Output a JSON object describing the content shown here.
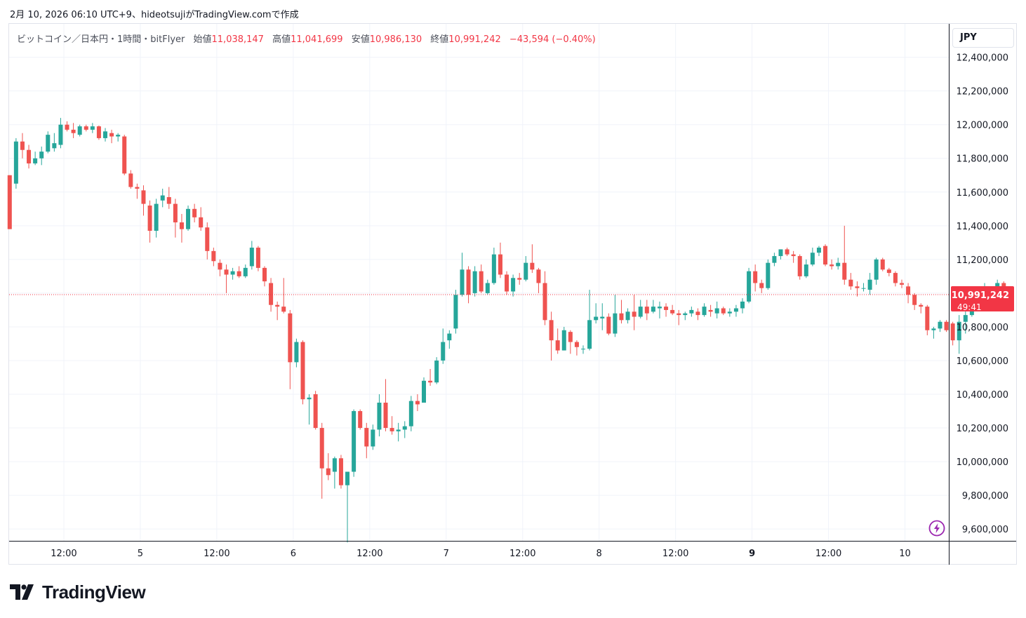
{
  "snapshot_caption": "2月 10, 2026 06:10 UTC+9、hideotsujiがTradingView.comで作成",
  "legend": {
    "symbol": "ビットコイン／日本円・1時間・bitFlyer",
    "open_label": "始値",
    "open_value": "11,038,147",
    "high_label": "高値",
    "high_value": "11,041,699",
    "low_label": "安値",
    "low_value": "10,986,130",
    "close_label": "終値",
    "close_value": "10,991,242",
    "change": "−43,594 (−0.40%)"
  },
  "currency": "JPY",
  "price_badge": {
    "price": "10,991,242",
    "countdown": "49:41"
  },
  "logo_text": "TradingView",
  "icons": {
    "alert": "lightning-icon",
    "brand": "tradingview-logo-icon"
  },
  "colors": {
    "up": "#26a69a",
    "down": "#ef5350",
    "last_price": "#f23645",
    "grid": "#f0f3fa",
    "accent": "#9c27b0"
  },
  "chart_data": {
    "type": "candlestick",
    "interval": "1h",
    "last_price": 10991242,
    "y_ticks": [
      9600000,
      9800000,
      10000000,
      10200000,
      10400000,
      10600000,
      10800000,
      11000000,
      11200000,
      11400000,
      11600000,
      11800000,
      12000000,
      12200000,
      12400000
    ],
    "y_tick_labels": [
      "9,600,000",
      "9,800,000",
      "10,000,000",
      "10,200,000",
      "10,400,000",
      "10,600,000",
      "10,800,000",
      "",
      "11,200,000",
      "11,400,000",
      "11,600,000",
      "11,800,000",
      "12,000,000",
      "12,200,000",
      "12,400,000"
    ],
    "x_ticks": [
      {
        "label": "12:00",
        "index": 8.5,
        "bold": false
      },
      {
        "label": "5",
        "index": 20.5,
        "bold": false
      },
      {
        "label": "12:00",
        "index": 32.5,
        "bold": false
      },
      {
        "label": "6",
        "index": 44.5,
        "bold": false
      },
      {
        "label": "12:00",
        "index": 56.5,
        "bold": false
      },
      {
        "label": "7",
        "index": 68.5,
        "bold": false
      },
      {
        "label": "12:00",
        "index": 80.5,
        "bold": false
      },
      {
        "label": "8",
        "index": 92.5,
        "bold": false
      },
      {
        "label": "12:00",
        "index": 104.5,
        "bold": false
      },
      {
        "label": "9",
        "index": 116.5,
        "bold": true
      },
      {
        "label": "12:00",
        "index": 128.5,
        "bold": false
      },
      {
        "label": "10",
        "index": 140.5,
        "bold": false
      }
    ],
    "candles": [
      [
        11700000,
        11700000,
        11380000,
        11380000
      ],
      [
        11650000,
        11920000,
        11620000,
        11900000
      ],
      [
        11900000,
        11950000,
        11800000,
        11850000
      ],
      [
        11850000,
        11880000,
        11740000,
        11770000
      ],
      [
        11770000,
        11840000,
        11760000,
        11800000
      ],
      [
        11800000,
        11870000,
        11760000,
        11840000
      ],
      [
        11840000,
        11960000,
        11830000,
        11940000
      ],
      [
        11860000,
        11950000,
        11840000,
        11890000
      ],
      [
        11880000,
        12040000,
        11860000,
        12000000
      ],
      [
        12000000,
        12020000,
        11960000,
        11970000
      ],
      [
        11970000,
        12010000,
        11920000,
        11950000
      ],
      [
        11940000,
        12000000,
        11930000,
        11990000
      ],
      [
        11990000,
        12000000,
        11960000,
        11970000
      ],
      [
        11970000,
        12010000,
        11950000,
        11990000
      ],
      [
        11990000,
        11995000,
        11910000,
        11920000
      ],
      [
        11920000,
        11980000,
        11900000,
        11960000
      ],
      [
        11950000,
        11970000,
        11890000,
        11930000
      ],
      [
        11930000,
        11950000,
        11900000,
        11940000
      ],
      [
        11930000,
        11940000,
        11700000,
        11710000
      ],
      [
        11710000,
        11730000,
        11620000,
        11630000
      ],
      [
        11630000,
        11650000,
        11560000,
        11620000
      ],
      [
        11610000,
        11640000,
        11460000,
        11530000
      ],
      [
        11520000,
        11550000,
        11300000,
        11370000
      ],
      [
        11370000,
        11560000,
        11330000,
        11530000
      ],
      [
        11550000,
        11620000,
        11510000,
        11580000
      ],
      [
        11570000,
        11630000,
        11500000,
        11530000
      ],
      [
        11530000,
        11560000,
        11330000,
        11420000
      ],
      [
        11420000,
        11470000,
        11300000,
        11380000
      ],
      [
        11380000,
        11520000,
        11370000,
        11500000
      ],
      [
        11500000,
        11530000,
        11420000,
        11450000
      ],
      [
        11450000,
        11510000,
        11370000,
        11390000
      ],
      [
        11390000,
        11420000,
        11200000,
        11250000
      ],
      [
        11250000,
        11270000,
        11160000,
        11190000
      ],
      [
        11180000,
        11200000,
        11100000,
        11140000
      ],
      [
        11140000,
        11170000,
        11000000,
        11110000
      ],
      [
        11110000,
        11150000,
        11080000,
        11130000
      ],
      [
        11130000,
        11160000,
        11090000,
        11100000
      ],
      [
        11100000,
        11170000,
        11090000,
        11150000
      ],
      [
        11160000,
        11310000,
        11140000,
        11270000
      ],
      [
        11270000,
        11280000,
        11130000,
        11150000
      ],
      [
        11150000,
        11160000,
        11040000,
        11070000
      ],
      [
        11060000,
        11090000,
        10890000,
        10930000
      ],
      [
        10930000,
        10950000,
        10840000,
        10920000
      ],
      [
        10920000,
        11090000,
        10880000,
        10890000
      ],
      [
        10880000,
        10900000,
        10430000,
        10590000
      ],
      [
        10590000,
        10730000,
        10560000,
        10710000
      ],
      [
        10710000,
        10720000,
        10340000,
        10370000
      ],
      [
        10370000,
        10400000,
        10220000,
        10380000
      ],
      [
        10400000,
        10420000,
        10190000,
        10200000
      ],
      [
        10200000,
        10230000,
        9780000,
        9960000
      ],
      [
        9960000,
        10050000,
        9890000,
        9920000
      ],
      [
        9940000,
        10030000,
        9840000,
        10020000
      ],
      [
        10020000,
        10040000,
        9840000,
        9860000
      ],
      [
        9860000,
        9940000,
        9520000,
        9940000
      ],
      [
        9940000,
        10310000,
        9910000,
        10300000
      ],
      [
        10300000,
        10310000,
        10190000,
        10200000
      ],
      [
        10200000,
        10230000,
        10020000,
        10090000
      ],
      [
        10090000,
        10220000,
        10070000,
        10190000
      ],
      [
        10190000,
        10400000,
        10150000,
        10350000
      ],
      [
        10350000,
        10490000,
        10180000,
        10200000
      ],
      [
        10200000,
        10270000,
        10160000,
        10180000
      ],
      [
        10180000,
        10230000,
        10120000,
        10190000
      ],
      [
        10190000,
        10240000,
        10140000,
        10210000
      ],
      [
        10210000,
        10390000,
        10180000,
        10360000
      ],
      [
        10360000,
        10400000,
        10300000,
        10340000
      ],
      [
        10350000,
        10500000,
        10350000,
        10480000
      ],
      [
        10480000,
        10550000,
        10450000,
        10470000
      ],
      [
        10470000,
        10620000,
        10460000,
        10600000
      ],
      [
        10600000,
        10790000,
        10580000,
        10710000
      ],
      [
        10720000,
        10780000,
        10670000,
        10760000
      ],
      [
        10790000,
        11020000,
        10760000,
        10990000
      ],
      [
        10990000,
        11240000,
        10980000,
        11140000
      ],
      [
        11140000,
        11160000,
        10940000,
        10990000
      ],
      [
        11000000,
        11160000,
        10980000,
        11130000
      ],
      [
        11130000,
        11170000,
        11000000,
        11010000
      ],
      [
        11000000,
        11080000,
        10990000,
        11060000
      ],
      [
        11060000,
        11270000,
        11050000,
        11230000
      ],
      [
        11230000,
        11300000,
        11090000,
        11110000
      ],
      [
        11110000,
        11130000,
        10990000,
        11010000
      ],
      [
        11010000,
        11110000,
        10980000,
        11090000
      ],
      [
        11090000,
        11120000,
        11050000,
        11080000
      ],
      [
        11080000,
        11220000,
        11070000,
        11180000
      ],
      [
        11180000,
        11290000,
        11120000,
        11140000
      ],
      [
        11140000,
        11150000,
        11000000,
        11060000
      ],
      [
        11060000,
        11130000,
        10810000,
        10840000
      ],
      [
        10840000,
        10890000,
        10600000,
        10720000
      ],
      [
        10720000,
        10790000,
        10640000,
        10660000
      ],
      [
        10660000,
        10800000,
        10660000,
        10780000
      ],
      [
        10770000,
        10780000,
        10640000,
        10710000
      ],
      [
        10710000,
        10720000,
        10630000,
        10680000
      ],
      [
        10670000,
        10690000,
        10640000,
        10670000
      ],
      [
        10670000,
        11020000,
        10660000,
        10840000
      ],
      [
        10840000,
        10940000,
        10820000,
        10860000
      ],
      [
        10850000,
        10940000,
        10780000,
        10860000
      ],
      [
        10860000,
        10880000,
        10750000,
        10760000
      ],
      [
        10760000,
        10990000,
        10740000,
        10880000
      ],
      [
        10880000,
        10960000,
        10820000,
        10840000
      ],
      [
        10840000,
        10910000,
        10820000,
        10890000
      ],
      [
        10890000,
        10990000,
        10780000,
        10860000
      ],
      [
        10860000,
        10960000,
        10850000,
        10920000
      ],
      [
        10920000,
        10960000,
        10840000,
        10880000
      ],
      [
        10890000,
        10960000,
        10880000,
        10920000
      ],
      [
        10910000,
        10950000,
        10850000,
        10920000
      ],
      [
        10920000,
        10940000,
        10860000,
        10900000
      ],
      [
        10900000,
        10930000,
        10870000,
        10880000
      ],
      [
        10880000,
        10900000,
        10810000,
        10870000
      ],
      [
        10870000,
        10890000,
        10840000,
        10880000
      ],
      [
        10880000,
        10920000,
        10860000,
        10900000
      ],
      [
        10890000,
        10910000,
        10840000,
        10870000
      ],
      [
        10870000,
        10940000,
        10860000,
        10920000
      ],
      [
        10900000,
        10930000,
        10860000,
        10890000
      ],
      [
        10880000,
        10950000,
        10850000,
        10910000
      ],
      [
        10910000,
        10920000,
        10870000,
        10880000
      ],
      [
        10880000,
        10910000,
        10860000,
        10890000
      ],
      [
        10890000,
        10930000,
        10860000,
        10910000
      ],
      [
        10910000,
        10970000,
        10880000,
        10950000
      ],
      [
        10950000,
        11150000,
        10940000,
        11130000
      ],
      [
        11130000,
        11170000,
        11010000,
        11060000
      ],
      [
        11060000,
        11080000,
        11000000,
        11030000
      ],
      [
        11030000,
        11200000,
        11020000,
        11180000
      ],
      [
        11180000,
        11240000,
        11160000,
        11220000
      ],
      [
        11220000,
        11260000,
        11200000,
        11260000
      ],
      [
        11260000,
        11270000,
        11220000,
        11230000
      ],
      [
        11230000,
        11250000,
        11180000,
        11220000
      ],
      [
        11220000,
        11230000,
        11080000,
        11100000
      ],
      [
        11100000,
        11200000,
        11090000,
        11170000
      ],
      [
        11170000,
        11270000,
        11160000,
        11240000
      ],
      [
        11240000,
        11280000,
        11220000,
        11270000
      ],
      [
        11280000,
        11290000,
        11160000,
        11170000
      ],
      [
        11170000,
        11200000,
        11140000,
        11160000
      ],
      [
        11160000,
        11210000,
        11140000,
        11180000
      ],
      [
        11180000,
        11400000,
        11050000,
        11080000
      ],
      [
        11080000,
        11120000,
        11020000,
        11040000
      ],
      [
        11040000,
        11070000,
        10980000,
        11030000
      ],
      [
        11030000,
        11060000,
        11010000,
        11030000
      ],
      [
        11020000,
        11120000,
        10990000,
        11080000
      ],
      [
        11080000,
        11210000,
        11050000,
        11200000
      ],
      [
        11200000,
        11210000,
        11130000,
        11140000
      ],
      [
        11140000,
        11150000,
        11100000,
        11120000
      ],
      [
        11120000,
        11130000,
        11040000,
        11060000
      ],
      [
        11060000,
        11080000,
        11030000,
        11050000
      ],
      [
        11040000,
        11060000,
        10940000,
        10990000
      ],
      [
        10990000,
        11000000,
        10900000,
        10930000
      ],
      [
        10930000,
        10940000,
        10880000,
        10920000
      ],
      [
        10920000,
        10930000,
        10750000,
        10780000
      ],
      [
        10780000,
        10800000,
        10730000,
        10790000
      ],
      [
        10790000,
        10840000,
        10770000,
        10830000
      ],
      [
        10830000,
        10840000,
        10770000,
        10780000
      ],
      [
        10820000,
        10830000,
        10690000,
        10720000
      ],
      [
        10720000,
        10870000,
        10640000,
        10830000
      ],
      [
        10830000,
        10910000,
        10760000,
        10870000
      ],
      [
        10870000,
        10960000,
        10860000,
        10950000
      ],
      [
        10950000,
        11040000,
        10940000,
        11020000
      ],
      [
        10980000,
        11060000,
        10950000,
        11000000
      ],
      [
        11000000,
        11040000,
        10980000,
        11030000
      ],
      [
        11030000,
        11080000,
        10990000,
        11060000
      ],
      [
        11060000,
        11070000,
        11010000,
        11040000
      ],
      [
        11038147,
        11041699,
        10986130,
        10991242
      ]
    ]
  }
}
